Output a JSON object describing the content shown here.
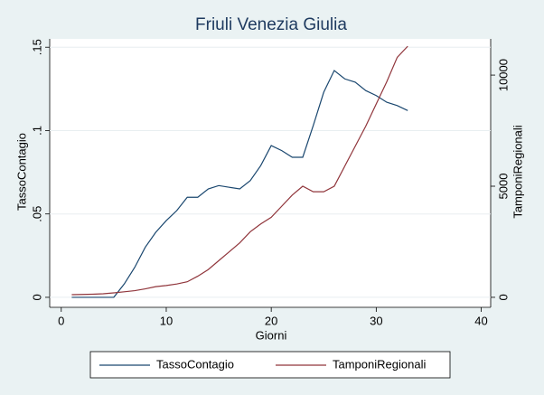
{
  "chart_data": {
    "type": "line",
    "title": "Friuli Venezia Giulia",
    "x_label": "Giorni",
    "y_label": "TassoContagio",
    "y2_label": "TamponiRegionali",
    "x": [
      1,
      2,
      3,
      4,
      5,
      6,
      7,
      8,
      9,
      10,
      11,
      12,
      13,
      14,
      15,
      16,
      17,
      18,
      19,
      20,
      21,
      22,
      23,
      24,
      25,
      26,
      27,
      28,
      29,
      30,
      31,
      32,
      33
    ],
    "series": [
      {
        "name": "TassoContagio",
        "color": "#1a476f",
        "values": [
          0,
          0,
          0,
          0,
          0,
          0.008,
          0.018,
          0.03,
          0.039,
          0.046,
          0.052,
          0.06,
          0.06,
          0.065,
          0.067,
          0.066,
          0.065,
          0.07,
          0.079,
          0.091,
          0.088,
          0.084,
          0.084,
          0.103,
          0.123,
          0.136,
          0.131,
          0.129,
          0.124,
          0.121,
          0.117,
          0.115,
          0.112
        ]
      },
      {
        "name": "TamponiRegionali",
        "color": "#90353b",
        "axis": "y2",
        "values": [
          120,
          130,
          140,
          160,
          200,
          250,
          300,
          380,
          480,
          530,
          600,
          700,
          950,
          1250,
          1650,
          2050,
          2450,
          2950,
          3300,
          3600,
          4100,
          4600,
          5000,
          4750,
          4750,
          5000,
          5900,
          6800,
          7700,
          8700,
          9700,
          10800,
          11300
        ]
      }
    ],
    "xlim": [
      -1.1,
      40.9
    ],
    "xticks": [
      0,
      10,
      20,
      30,
      40
    ],
    "ylim": [
      -0.006,
      0.155
    ],
    "yticks": [
      0,
      {
        "value": 0.05,
        "label": ".05"
      },
      {
        "value": 0.1,
        "label": ".1"
      },
      {
        "value": 0.15,
        "label": ".15"
      }
    ],
    "y2lim": [
      -450,
      11630
    ],
    "y2ticks": [
      0,
      5000,
      10000
    ],
    "grid": true,
    "legend": "bottom"
  }
}
